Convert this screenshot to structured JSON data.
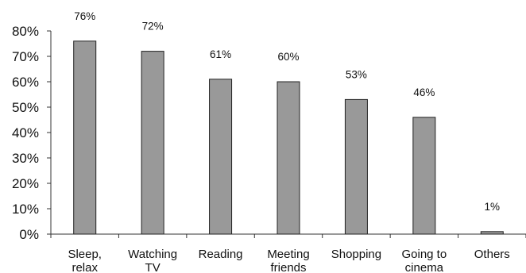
{
  "chart_data": {
    "type": "bar",
    "title": "",
    "xlabel": "",
    "ylabel": "",
    "categories": [
      [
        "Sleep,",
        "relax"
      ],
      [
        "Watching",
        "TV"
      ],
      [
        "Reading"
      ],
      [
        "Meeting",
        "friends"
      ],
      [
        "Shopping"
      ],
      [
        "Going to",
        "cinema"
      ],
      [
        "Others"
      ]
    ],
    "values": [
      76,
      72,
      61,
      60,
      53,
      46,
      1
    ],
    "data_labels": [
      "76%",
      "72%",
      "61%",
      "60%",
      "53%",
      "46%",
      "1%"
    ],
    "ylim": [
      0,
      80
    ],
    "yticks": [
      0,
      10,
      20,
      30,
      40,
      50,
      60,
      70,
      80
    ],
    "ytick_labels": [
      "0%",
      "10%",
      "20%",
      "30%",
      "40%",
      "50%",
      "60%",
      "70%",
      "80%"
    ],
    "grid": false,
    "legend": "none",
    "colors": {
      "bar_fill": "#999999",
      "bar_stroke": "#222222",
      "axis": "#333333"
    }
  }
}
